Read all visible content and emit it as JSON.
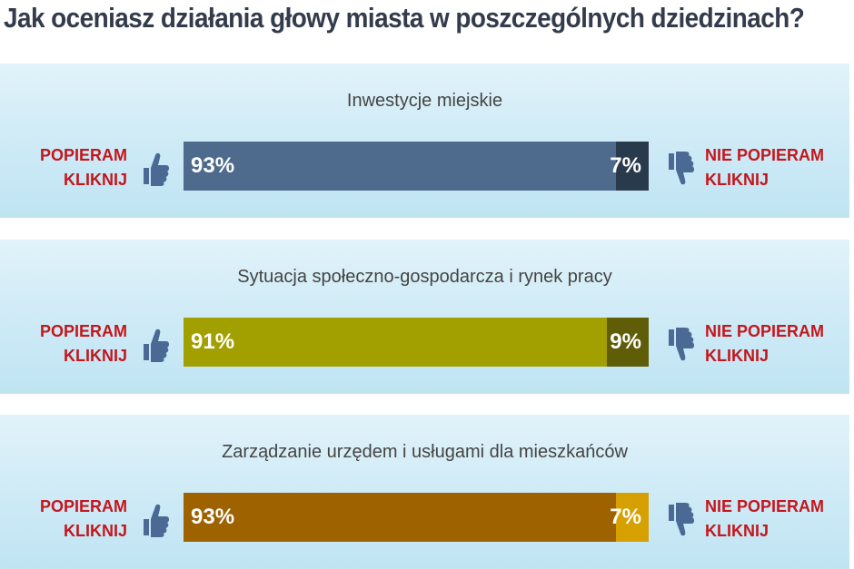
{
  "page": {
    "title": "Jak oceniasz działania głowy miasta w poszczególnych dziedzinach?"
  },
  "polls": [
    {
      "topic": "Inwestycje miejskie",
      "support_label": "POPIERAM",
      "support_action": "KLIKNIJ",
      "oppose_label": "NIE POPIERAM",
      "oppose_action": "KLIKNIJ",
      "support_pct": "93%",
      "oppose_pct": "7%",
      "support_value": 93,
      "oppose_value": 7,
      "support_color": "#4e6a8c",
      "oppose_color": "#2a3a4d"
    },
    {
      "topic": "Sytuacja społeczno-gospodarcza i rynek pracy",
      "support_label": "POPIERAM",
      "support_action": "KLIKNIJ",
      "oppose_label": "NIE POPIERAM",
      "oppose_action": "KLIKNIJ",
      "support_pct": "91%",
      "oppose_pct": "9%",
      "support_value": 91,
      "oppose_value": 9,
      "support_color": "#a2a000",
      "oppose_color": "#5f5d08"
    },
    {
      "topic": "Zarządzanie urzędem i usługami dla mieszkańców",
      "support_label": "POPIERAM",
      "support_action": "KLIKNIJ",
      "oppose_label": "NIE POPIERAM",
      "oppose_action": "KLIKNIJ",
      "support_pct": "93%",
      "oppose_pct": "7%",
      "support_value": 93,
      "oppose_value": 7,
      "support_color": "#9e6200",
      "oppose_color": "#d6a100"
    }
  ],
  "icons": {
    "support": "thumbs-up-icon",
    "oppose": "thumbs-down-icon",
    "icon_color": "#4a6a95"
  }
}
